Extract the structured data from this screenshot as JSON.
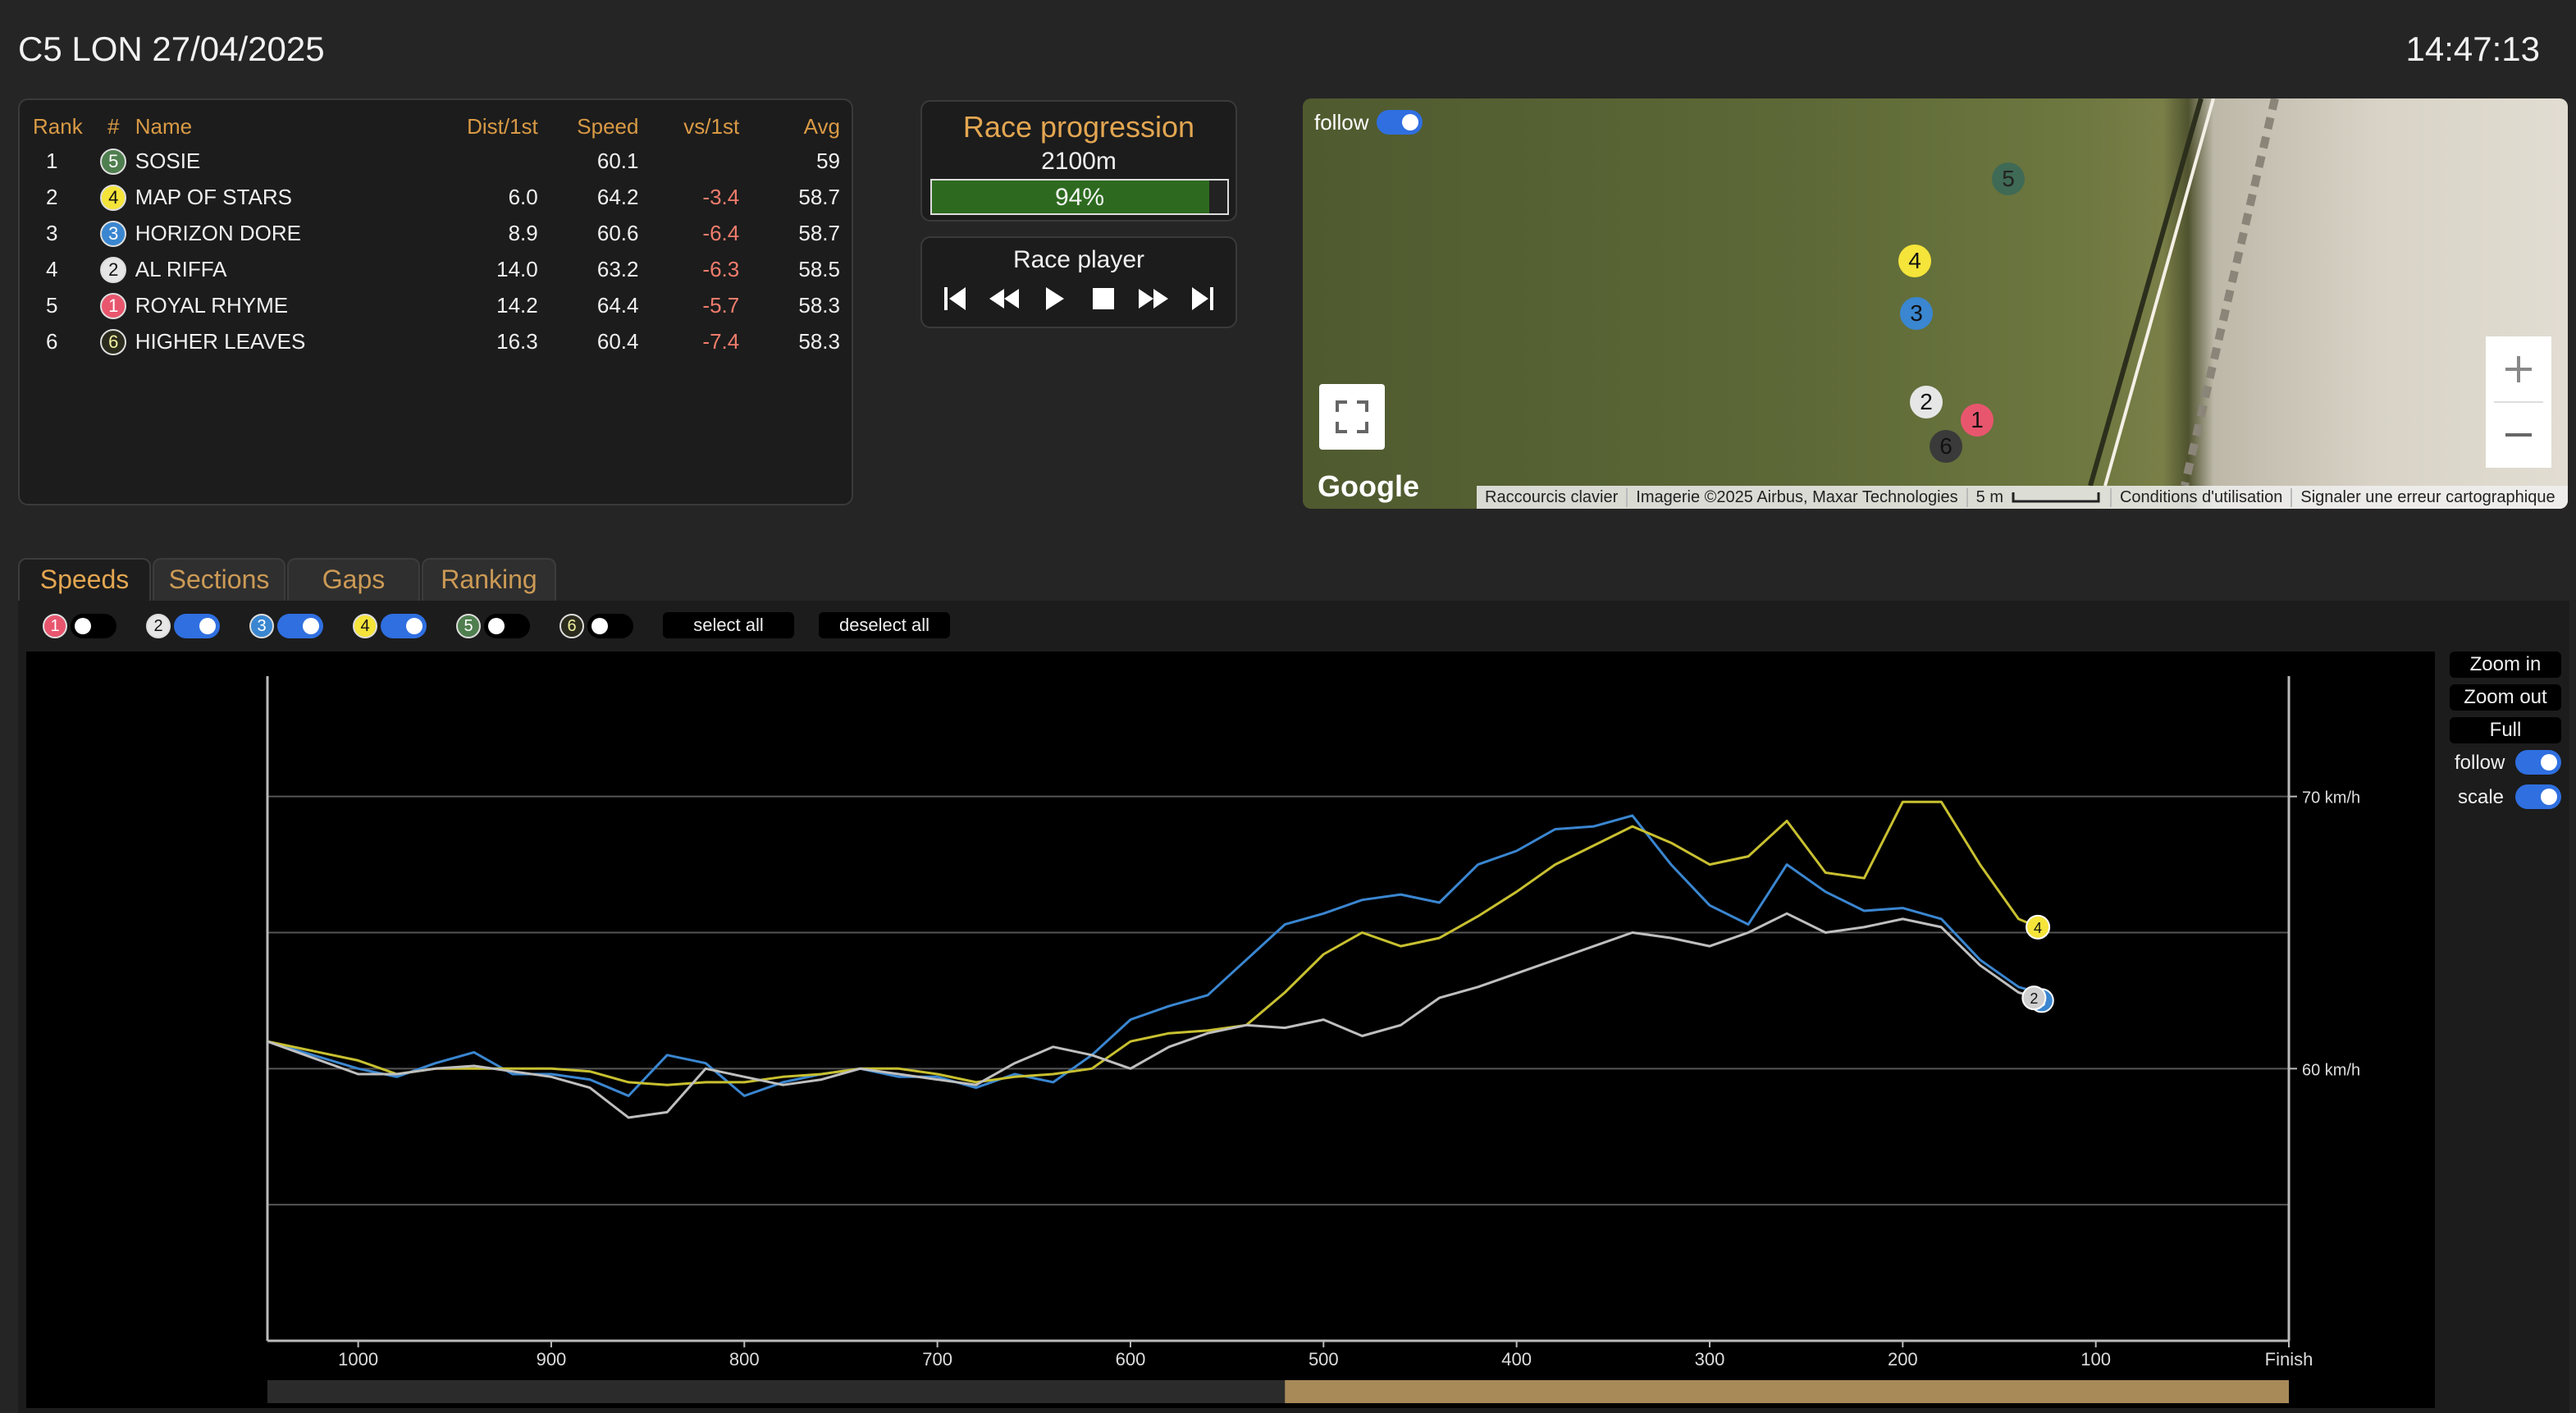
{
  "header": {
    "title": "C5 LON 27/04/2025",
    "clock": "14:47:13"
  },
  "ranking": {
    "columns": [
      "Rank",
      "#",
      "Name",
      "Dist/1st",
      "Speed",
      "vs/1st",
      "Avg"
    ],
    "rows": [
      {
        "rank": "1",
        "num": "5",
        "name": "SOSIE",
        "dist": "",
        "speed": "60.1",
        "vs": "",
        "avg": "59",
        "color": "#4f7f4f",
        "text": "#fff"
      },
      {
        "rank": "2",
        "num": "4",
        "name": "MAP OF STARS",
        "dist": "6.0",
        "speed": "64.2",
        "vs": "-3.4",
        "avg": "58.7",
        "color": "#f5e43a",
        "text": "#111"
      },
      {
        "rank": "3",
        "num": "3",
        "name": "HORIZON DORE",
        "dist": "8.9",
        "speed": "60.6",
        "vs": "-6.4",
        "avg": "58.7",
        "color": "#3a86d0",
        "text": "#fff"
      },
      {
        "rank": "4",
        "num": "2",
        "name": "AL RIFFA",
        "dist": "14.0",
        "speed": "63.2",
        "vs": "-6.3",
        "avg": "58.5",
        "color": "#e6e6e6",
        "text": "#111"
      },
      {
        "rank": "5",
        "num": "1",
        "name": "ROYAL RHYME",
        "dist": "14.2",
        "speed": "64.4",
        "vs": "-5.7",
        "avg": "58.3",
        "color": "#e8566e",
        "text": "#fff"
      },
      {
        "rank": "6",
        "num": "6",
        "name": "HIGHER LEAVES",
        "dist": "16.3",
        "speed": "60.4",
        "vs": "-7.4",
        "avg": "58.3",
        "color": "#2c2c1e",
        "text": "#f0f0a0"
      }
    ]
  },
  "progression": {
    "title": "Race progression",
    "distance": "2100m",
    "percent_label": "94%",
    "percent": 94
  },
  "player": {
    "title": "Race player"
  },
  "map": {
    "follow_label": "follow",
    "google": "Google",
    "attribution": [
      "Raccourcis clavier",
      "Imagerie ©2025 Airbus, Maxar Technologies",
      "5 m",
      "Conditions d'utilisation",
      "Signaler une erreur cartographique"
    ],
    "horses": [
      {
        "num": "5",
        "color": "#3f6a55",
        "text": "#222"
      },
      {
        "num": "4",
        "color": "#f5e43a",
        "text": "#111"
      },
      {
        "num": "3",
        "color": "#3a86d0",
        "text": "#111"
      },
      {
        "num": "2",
        "color": "#e6e6e6",
        "text": "#111"
      },
      {
        "num": "1",
        "color": "#e8566e",
        "text": "#111"
      },
      {
        "num": "6",
        "color": "#3a3a3a",
        "text": "#111"
      }
    ]
  },
  "tabs": [
    "Speeds",
    "Sections",
    "Gaps",
    "Ranking"
  ],
  "selectors": [
    {
      "num": "1",
      "on": false,
      "color": "#e8566e",
      "text": "#fff"
    },
    {
      "num": "2",
      "on": true,
      "color": "#e6e6e6",
      "text": "#111"
    },
    {
      "num": "3",
      "on": true,
      "color": "#3a86d0",
      "text": "#fff"
    },
    {
      "num": "4",
      "on": true,
      "color": "#f5e43a",
      "text": "#111"
    },
    {
      "num": "5",
      "on": false,
      "color": "#4f7f4f",
      "text": "#fff"
    },
    {
      "num": "6",
      "on": false,
      "color": "#2c2c1e",
      "text": "#f0f0a0"
    }
  ],
  "buttons": {
    "select_all": "select all",
    "deselect_all": "deselect all"
  },
  "side": {
    "zoom_in": "Zoom in",
    "zoom_out": "Zoom out",
    "full": "Full",
    "follow": "follow",
    "scale": "scale"
  },
  "chart_data": {
    "type": "line",
    "x_ticks": [
      "1000",
      "900",
      "800",
      "700",
      "600",
      "500",
      "400",
      "300",
      "200",
      "100",
      "Finish"
    ],
    "y_ticks": [
      "60 km/h",
      "70 km/h"
    ],
    "xlim": [
      1047,
      0
    ],
    "ylim": [
      50,
      74
    ],
    "series": [
      {
        "horse": "3",
        "color": "#3a86d0",
        "x": [
          1047,
          1000,
          980,
          960,
          940,
          920,
          900,
          880,
          860,
          840,
          820,
          800,
          780,
          760,
          740,
          720,
          700,
          680,
          660,
          640,
          620,
          600,
          580,
          560,
          540,
          520,
          500,
          480,
          460,
          440,
          420,
          400,
          380,
          360,
          340,
          320,
          300,
          280,
          260,
          240,
          220,
          200,
          180,
          160,
          140,
          130
        ],
        "y": [
          61.0,
          60.0,
          59.7,
          60.2,
          60.6,
          59.8,
          59.8,
          59.6,
          59.0,
          60.5,
          60.2,
          59.0,
          59.5,
          59.8,
          60.0,
          59.7,
          59.7,
          59.3,
          59.8,
          59.5,
          60.5,
          61.8,
          62.3,
          62.7,
          64.0,
          65.3,
          65.7,
          66.2,
          66.4,
          66.1,
          67.5,
          68.0,
          68.8,
          68.9,
          69.3,
          67.5,
          66.0,
          65.3,
          67.5,
          66.5,
          65.8,
          65.9,
          65.5,
          64.0,
          63.0,
          62.8
        ]
      },
      {
        "horse": "4",
        "color": "#c8c030",
        "x": [
          1047,
          1000,
          980,
          960,
          940,
          920,
          900,
          880,
          860,
          840,
          820,
          800,
          780,
          760,
          740,
          720,
          700,
          680,
          660,
          640,
          620,
          600,
          580,
          560,
          540,
          520,
          500,
          480,
          460,
          440,
          420,
          400,
          380,
          360,
          340,
          320,
          300,
          280,
          260,
          240,
          220,
          200,
          180,
          160,
          140,
          130
        ],
        "y": [
          61.0,
          60.3,
          59.8,
          60.0,
          60.0,
          60.0,
          60.0,
          59.9,
          59.5,
          59.4,
          59.5,
          59.5,
          59.7,
          59.8,
          60.0,
          60.0,
          59.8,
          59.5,
          59.7,
          59.8,
          60.0,
          61.0,
          61.3,
          61.4,
          61.6,
          62.8,
          64.2,
          65.0,
          64.5,
          64.8,
          65.6,
          66.5,
          67.5,
          68.2,
          68.9,
          68.3,
          67.5,
          67.8,
          69.1,
          67.2,
          67.0,
          69.8,
          69.8,
          67.5,
          65.5,
          65.2
        ]
      },
      {
        "horse": "2",
        "color": "#bfbfbf",
        "x": [
          1047,
          1000,
          980,
          960,
          940,
          920,
          900,
          880,
          860,
          840,
          820,
          800,
          780,
          760,
          740,
          720,
          700,
          680,
          660,
          640,
          620,
          600,
          580,
          560,
          540,
          520,
          500,
          480,
          460,
          440,
          420,
          400,
          380,
          360,
          340,
          320,
          300,
          280,
          260,
          240,
          220,
          200,
          180,
          160,
          140,
          130
        ],
        "y": [
          61.0,
          59.8,
          59.8,
          60.0,
          60.1,
          59.9,
          59.7,
          59.3,
          58.2,
          58.4,
          60.0,
          59.7,
          59.4,
          59.6,
          60.0,
          59.8,
          59.6,
          59.4,
          60.2,
          60.8,
          60.5,
          60.0,
          60.8,
          61.3,
          61.6,
          61.5,
          61.8,
          61.2,
          61.6,
          62.6,
          63.0,
          63.5,
          64.0,
          64.5,
          65.0,
          64.8,
          64.5,
          65.0,
          65.7,
          65.0,
          65.2,
          65.5,
          65.2,
          63.8,
          62.8,
          62.6
        ]
      }
    ],
    "markers": [
      {
        "horse": "4",
        "x": 130,
        "y": 65.2,
        "color": "#f5e43a",
        "text": "#111"
      },
      {
        "horse": "3",
        "x": 128,
        "y": 62.5,
        "color": "#3a86d0",
        "text": "#fff"
      },
      {
        "horse": "2",
        "x": 132,
        "y": 62.6,
        "color": "#cfcfcf",
        "text": "#111"
      }
    ],
    "window": [
      520,
      0
    ]
  }
}
